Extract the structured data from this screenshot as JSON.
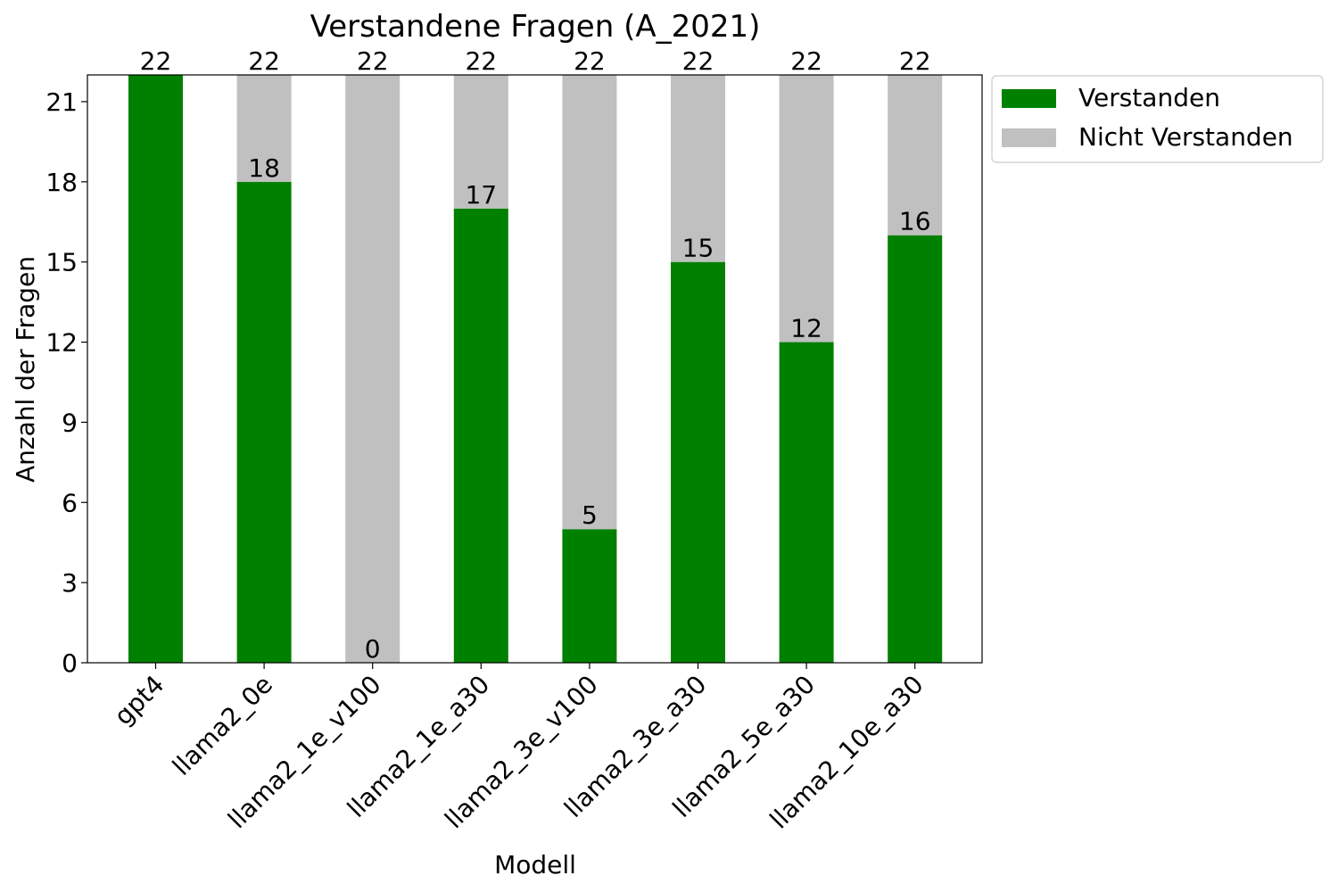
{
  "chart_data": {
    "type": "bar",
    "stacked": true,
    "title": "Verstandene Fragen (A_2021)",
    "xlabel": "Modell",
    "ylabel": "Anzahl der Fragen",
    "categories": [
      "gpt4",
      "llama2_0e",
      "llama2_1e_v100",
      "llama2_1e_a30",
      "llama2_3e_v100",
      "llama2_3e_a30",
      "llama2_5e_a30",
      "llama2_10e_a30"
    ],
    "series": [
      {
        "name": "Verstanden",
        "values": [
          22,
          18,
          0,
          17,
          5,
          15,
          12,
          16
        ],
        "color": "#008000"
      },
      {
        "name": "Nicht Verstanden",
        "values": [
          0,
          4,
          22,
          5,
          17,
          7,
          10,
          6
        ],
        "color": "#c0c0c0"
      }
    ],
    "bar_labels": [
      "18",
      "0",
      "17",
      "5",
      "15",
      "12",
      "16"
    ],
    "total_labels": [
      "22",
      "22",
      "22",
      "22",
      "22",
      "22",
      "22",
      "22"
    ],
    "yticks": [
      0,
      3,
      6,
      9,
      12,
      15,
      18,
      21
    ],
    "ylim": [
      0,
      22
    ],
    "grid": false,
    "legend_position": "outside-upper-right"
  }
}
